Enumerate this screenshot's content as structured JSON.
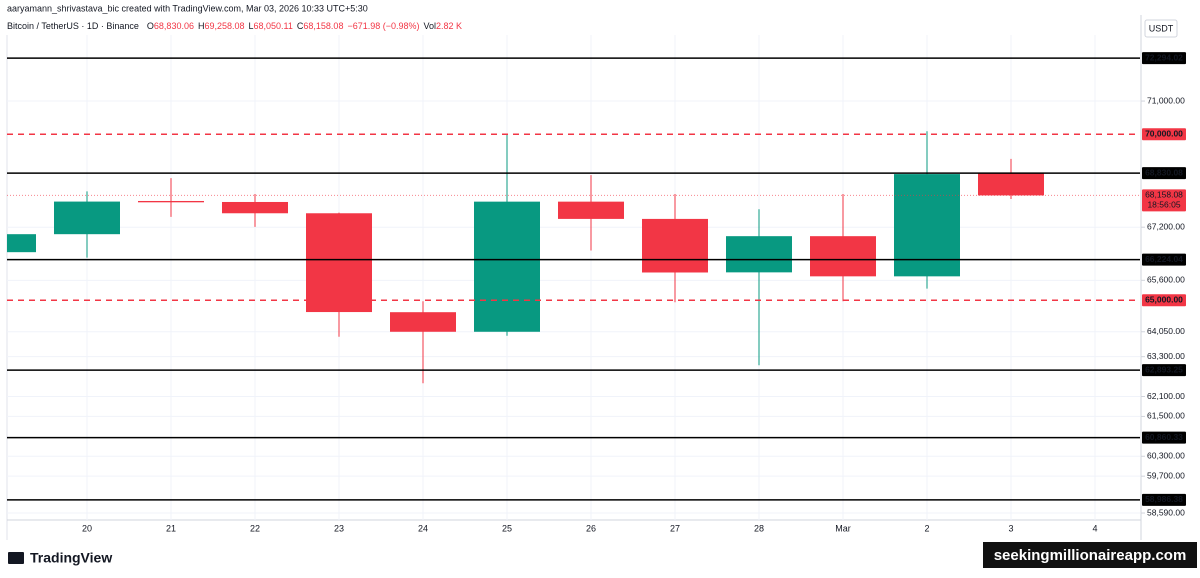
{
  "header": {
    "author_line": "aaryamann_shrivastava_bic created with TradingView.com, Mar 03, 2026 10:33 UTC+5:30"
  },
  "chart_data": {
    "type": "candlestick",
    "title": "Bitcoin / TetherUS · 1D · Binance",
    "legend_items": [
      {
        "key": "O",
        "text": "68,830.06"
      },
      {
        "key": "H",
        "text": "69,258.08"
      },
      {
        "key": "L",
        "text": "68,050.11"
      },
      {
        "key": "C",
        "text": "68,158.08"
      },
      {
        "text": "−671.98 (−0.98%)"
      },
      {
        "key": "Vol",
        "text": "2.82 K"
      }
    ],
    "currency": "USDT",
    "categories": [
      null,
      "20",
      "21",
      "22",
      "23",
      "24",
      "25",
      "26",
      "27",
      "28",
      "Mar",
      "2",
      "3",
      "4"
    ],
    "open": [
      66448,
      66990,
      67990,
      67960,
      67620,
      64640,
      64050,
      67970,
      67450,
      65840,
      66930,
      65720,
      68830.06,
      null
    ],
    "high": [
      66990,
      68278,
      68680,
      68200,
      67640,
      64970,
      70010,
      68770,
      68200,
      67740,
      68200,
      70090,
      69258.08,
      null
    ],
    "low": [
      66448,
      66285,
      67510,
      67210,
      63902,
      62498,
      63930,
      66500,
      64940,
      63040,
      64970,
      65350,
      68050.11,
      null
    ],
    "close": [
      66990,
      67972,
      67950,
      67620,
      64644,
      64050,
      67970,
      67450,
      65836,
      66930,
      65720,
      68800,
      68158.08,
      null
    ],
    "up_color": "#089981",
    "down_color": "#f23645",
    "ylim": [
      58380,
      72990
    ],
    "yticks": [
      {
        "value": 58590,
        "label": "58,590.00"
      },
      {
        "value": 59700,
        "label": "59,700.00"
      },
      {
        "value": 60300,
        "label": "60,300.00"
      },
      {
        "value": 61500,
        "label": "61,500.00"
      },
      {
        "value": 62100,
        "label": "62,100.00"
      },
      {
        "value": 63300,
        "label": "63,300.00"
      },
      {
        "value": 64050,
        "label": "64,050.00"
      },
      {
        "value": 65600,
        "label": "65,600.00"
      },
      {
        "value": 67200,
        "label": "67,200.00"
      },
      {
        "value": 71000,
        "label": "71,000.00"
      }
    ],
    "levels": [
      {
        "value": 72294.02,
        "label": "72,294.02",
        "color": "#000000",
        "dashed": false
      },
      {
        "value": 70000,
        "label": "70,000.00",
        "color": "#f23645",
        "dashed": true
      },
      {
        "value": 68830.08,
        "label": "68,830.08",
        "color": "#000000",
        "dashed": false
      },
      {
        "value": 66224.04,
        "label": "66,224.04",
        "color": "#000000",
        "dashed": false
      },
      {
        "value": 65000,
        "label": "65,000.00",
        "color": "#f23645",
        "dashed": true
      },
      {
        "value": 62893.25,
        "label": "62,893.25",
        "color": "#000000",
        "dashed": false
      },
      {
        "value": 60860.33,
        "label": "60,860.33",
        "color": "#000000",
        "dashed": false
      },
      {
        "value": 58986.38,
        "label": "58,986.38",
        "color": "#000000",
        "dashed": false
      }
    ],
    "last_price": {
      "value": 68158.08,
      "label": "68,158.08",
      "countdown": "18:56:05",
      "color": "#f23645"
    },
    "grid": true
  },
  "branding": {
    "logo": "TradingView",
    "watermark": "seekingmillionaireapp.com"
  }
}
